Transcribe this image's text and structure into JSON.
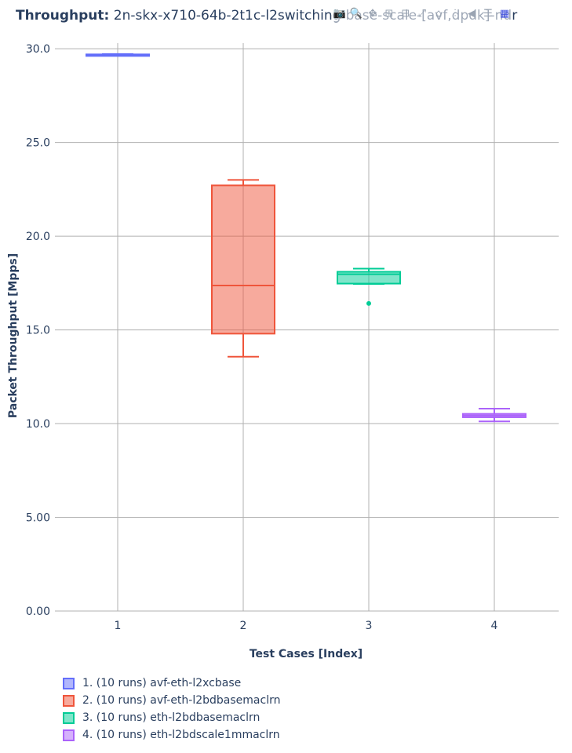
{
  "title": {
    "bold": "Throughput:",
    "rest": "2n-skx-x710-64b-2t1c-l2switching-base-scale-[avf,dpdk]-ndr"
  },
  "modebar": {
    "buttons": [
      {
        "name": "camera-icon",
        "glyph": "📷"
      },
      {
        "name": "zoom-icon",
        "glyph": "🔍"
      },
      {
        "name": "pan-icon",
        "glyph": "✥"
      },
      {
        "name": "zoom-in-icon",
        "glyph": "⊞"
      },
      {
        "name": "zoom-out-icon",
        "glyph": "⊟"
      },
      {
        "name": "autoscale-icon",
        "glyph": "⤢"
      },
      {
        "name": "reset-axes-icon",
        "glyph": "⌂"
      },
      {
        "name": "spike-lines-icon",
        "glyph": "⫶"
      },
      {
        "name": "hover-closest-icon",
        "glyph": "◀"
      },
      {
        "name": "hover-compare-icon",
        "glyph": "☰"
      },
      {
        "name": "plotly-logo-icon",
        "glyph": "▦"
      }
    ]
  },
  "chart_data": {
    "type": "box",
    "xlabel": "Test Cases [Index]",
    "ylabel": "Packet Throughput [Mpps]",
    "x_ticks": [
      "1",
      "2",
      "3",
      "4"
    ],
    "y_ticks": [
      "0.00",
      "5.00",
      "10.0",
      "15.0",
      "20.0",
      "25.0",
      "30.0"
    ],
    "ylim": [
      0,
      30.3
    ],
    "grid": true,
    "legend_position": "bottom-left",
    "series": [
      {
        "name": "1. (10 runs) avf-eth-l2xcbase",
        "x": 1,
        "min": 29.63,
        "q1": 29.66,
        "median": 29.68,
        "q3": 29.7,
        "max": 29.72,
        "outliers": [],
        "color": "#636efa"
      },
      {
        "name": "2. (10 runs) avf-eth-l2bdbasemaclrn",
        "x": 2,
        "min": 13.57,
        "q1": 14.8,
        "median": 17.37,
        "q3": 22.71,
        "max": 23.0,
        "outliers": [],
        "color": "#ef553b"
      },
      {
        "name": "3. (10 runs) eth-l2bdbasemaclrn",
        "x": 3,
        "min": 17.45,
        "q1": 17.47,
        "median": 17.97,
        "q3": 18.1,
        "max": 18.27,
        "outliers": [
          16.41
        ],
        "color": "#00cc96"
      },
      {
        "name": "4. (10 runs) eth-l2bdscale1mmaclrn",
        "x": 4,
        "min": 10.12,
        "q1": 10.34,
        "median": 10.43,
        "q3": 10.52,
        "max": 10.8,
        "outliers": [],
        "color": "#ab63fa"
      }
    ]
  }
}
